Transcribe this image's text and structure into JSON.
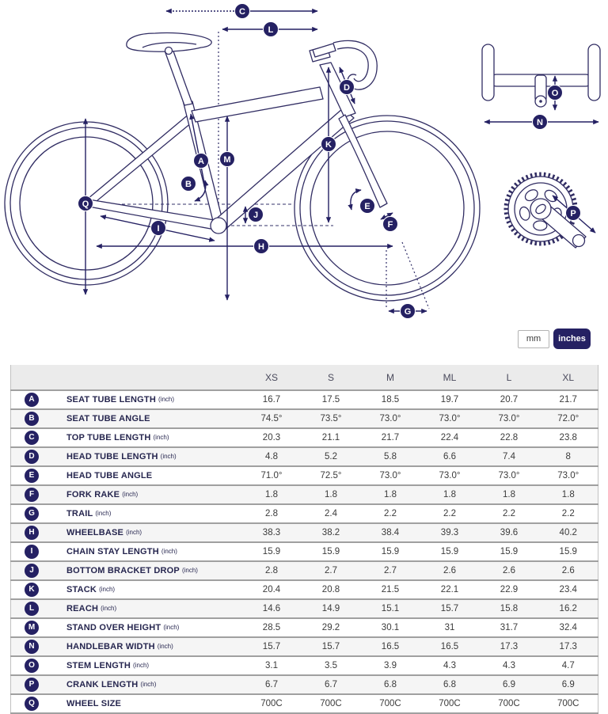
{
  "diagram": {
    "badges": {
      "A": "A",
      "B": "B",
      "C": "C",
      "D": "D",
      "E": "E",
      "F": "F",
      "G": "G",
      "H": "H",
      "I": "I",
      "J": "J",
      "K": "K",
      "L": "L",
      "M": "M",
      "N": "N",
      "O": "O",
      "P": "P",
      "Q": "Q"
    }
  },
  "units_toggle": {
    "mm_label": "mm",
    "inches_label": "inches",
    "selected": "inches"
  },
  "colors": {
    "accent_navy": "#252163",
    "header_bg": "#ebebeb",
    "row_alt_bg": "#f5f5f5",
    "row_border": "#a0a0a0"
  },
  "table": {
    "size_headers": [
      "XS",
      "S",
      "M",
      "ML",
      "L",
      "XL"
    ],
    "rows": [
      {
        "letter": "A",
        "label": "SEAT TUBE LENGTH",
        "unit": "(inch)",
        "values": [
          "16.7",
          "17.5",
          "18.5",
          "19.7",
          "20.7",
          "21.7"
        ]
      },
      {
        "letter": "B",
        "label": "SEAT TUBE ANGLE",
        "unit": "",
        "values": [
          "74.5°",
          "73.5°",
          "73.0°",
          "73.0°",
          "73.0°",
          "72.0°"
        ]
      },
      {
        "letter": "C",
        "label": "TOP TUBE LENGTH",
        "unit": "(inch)",
        "values": [
          "20.3",
          "21.1",
          "21.7",
          "22.4",
          "22.8",
          "23.8"
        ]
      },
      {
        "letter": "D",
        "label": "HEAD TUBE LENGTH",
        "unit": "(inch)",
        "values": [
          "4.8",
          "5.2",
          "5.8",
          "6.6",
          "7.4",
          "8"
        ]
      },
      {
        "letter": "E",
        "label": "HEAD TUBE ANGLE",
        "unit": "",
        "values": [
          "71.0°",
          "72.5°",
          "73.0°",
          "73.0°",
          "73.0°",
          "73.0°"
        ]
      },
      {
        "letter": "F",
        "label": "FORK RAKE",
        "unit": "(inch)",
        "values": [
          "1.8",
          "1.8",
          "1.8",
          "1.8",
          "1.8",
          "1.8"
        ]
      },
      {
        "letter": "G",
        "label": "TRAIL",
        "unit": "(inch)",
        "values": [
          "2.8",
          "2.4",
          "2.2",
          "2.2",
          "2.2",
          "2.2"
        ]
      },
      {
        "letter": "H",
        "label": "WHEELBASE",
        "unit": "(inch)",
        "values": [
          "38.3",
          "38.2",
          "38.4",
          "39.3",
          "39.6",
          "40.2"
        ]
      },
      {
        "letter": "I",
        "label": "CHAIN STAY LENGTH",
        "unit": "(inch)",
        "values": [
          "15.9",
          "15.9",
          "15.9",
          "15.9",
          "15.9",
          "15.9"
        ]
      },
      {
        "letter": "J",
        "label": "BOTTOM BRACKET DROP",
        "unit": "(inch)",
        "values": [
          "2.8",
          "2.7",
          "2.7",
          "2.6",
          "2.6",
          "2.6"
        ]
      },
      {
        "letter": "K",
        "label": "STACK",
        "unit": "(inch)",
        "values": [
          "20.4",
          "20.8",
          "21.5",
          "22.1",
          "22.9",
          "23.4"
        ]
      },
      {
        "letter": "L",
        "label": "REACH",
        "unit": "(inch)",
        "values": [
          "14.6",
          "14.9",
          "15.1",
          "15.7",
          "15.8",
          "16.2"
        ]
      },
      {
        "letter": "M",
        "label": "STAND OVER HEIGHT",
        "unit": "(inch)",
        "values": [
          "28.5",
          "29.2",
          "30.1",
          "31",
          "31.7",
          "32.4"
        ]
      },
      {
        "letter": "N",
        "label": "HANDLEBAR WIDTH",
        "unit": "(inch)",
        "values": [
          "15.7",
          "15.7",
          "16.5",
          "16.5",
          "17.3",
          "17.3"
        ]
      },
      {
        "letter": "O",
        "label": "STEM LENGTH",
        "unit": "(inch)",
        "values": [
          "3.1",
          "3.5",
          "3.9",
          "4.3",
          "4.3",
          "4.7"
        ]
      },
      {
        "letter": "P",
        "label": "CRANK LENGTH",
        "unit": "(inch)",
        "values": [
          "6.7",
          "6.7",
          "6.8",
          "6.8",
          "6.9",
          "6.9"
        ]
      },
      {
        "letter": "Q",
        "label": "WHEEL SIZE",
        "unit": "",
        "values": [
          "700C",
          "700C",
          "700C",
          "700C",
          "700C",
          "700C"
        ]
      }
    ]
  }
}
